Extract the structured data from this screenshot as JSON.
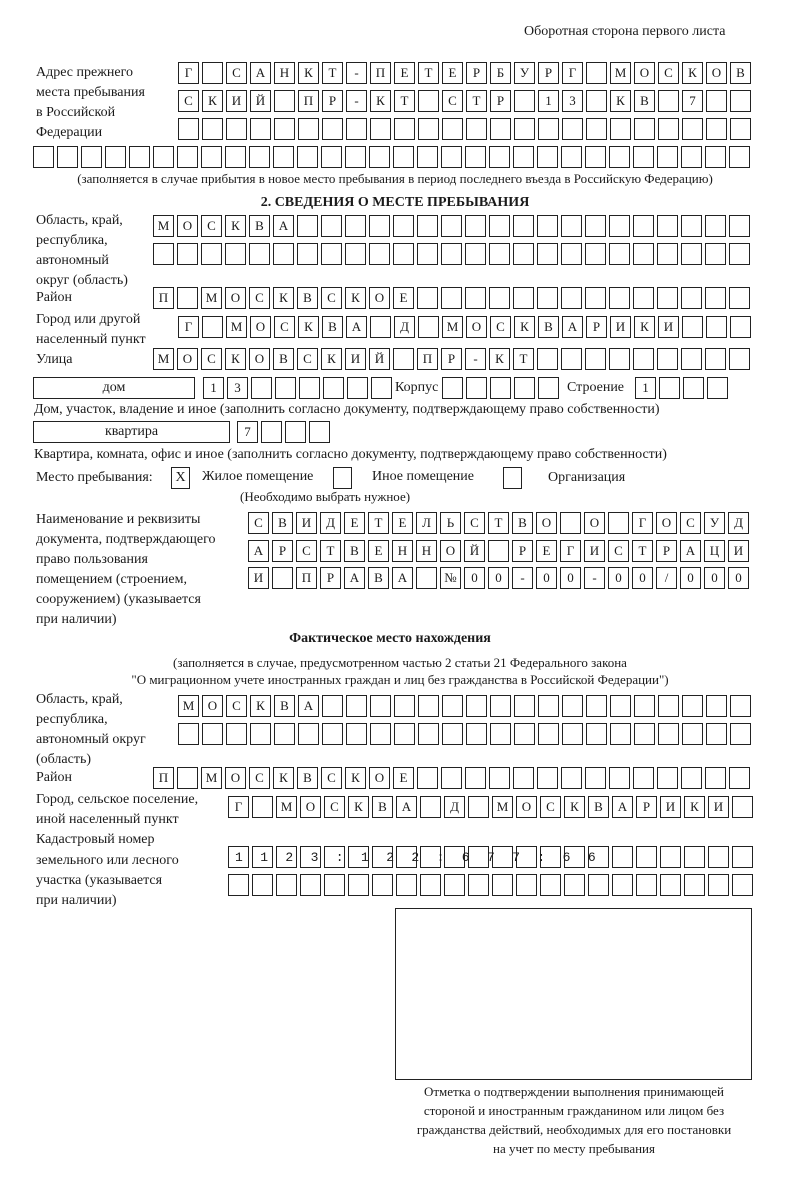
{
  "header": {
    "title": "Оборотная сторона первого листа"
  },
  "previous_address": {
    "label": [
      "Адрес прежнего",
      "места пребывания",
      "в Российской",
      "Федерации"
    ],
    "rows": [
      {
        "value": "Г САНКТ-ПЕТЕРБУРГ МОСКОВ",
        "cells": 24
      },
      {
        "value": "СКИЙ ПР-КТ СТР 13 КВ 7",
        "cells": 24
      },
      {
        "value": "",
        "cells": 24
      },
      {
        "value": "",
        "cells": 30
      }
    ],
    "note": "(заполняется в случае прибытия в новое место пребывания в период последнего въезда в Российскую Федерацию)"
  },
  "section2": {
    "title": "2. СВЕДЕНИЯ О МЕСТЕ ПРЕБЫВАНИЯ",
    "region_label": [
      "Область, край,",
      "республика,",
      "автономный",
      "округ (область)"
    ],
    "region_rows": [
      {
        "value": "МОСКВА",
        "cells": 25
      },
      {
        "value": "",
        "cells": 25
      }
    ],
    "district_label": "Район",
    "district_row": {
      "value": "П МОСКВСКОЕ",
      "cells": 25
    },
    "city_label": [
      "Город или другой",
      "населенный пункт"
    ],
    "city_row": {
      "value": "Г МОСКВА Д МОСКВАРИКИ",
      "cells": 24
    },
    "street_label": "Улица",
    "street_row": {
      "value": "МОСКОВСКИЙ ПР-КТ",
      "cells": 25
    },
    "house_type": "дом",
    "house_row": {
      "value": "13",
      "cells": 8
    },
    "building_label": "Корпус",
    "building_row": {
      "value": "",
      "cells": 5
    },
    "structure_label": "Строение",
    "structure_row": {
      "value": "1",
      "cells": 4
    },
    "house_note": "Дом, участок, владение и иное (заполнить согласно документу, подтверждающему право собственности)",
    "apartment_type": "квартира",
    "apartment_row": {
      "value": "7",
      "cells": 4
    },
    "apartment_note": "Квартира, комната, офис и иное (заполнить согласно документу, подтверждающему право собственности)",
    "stay_place_label": "Место пребывания:",
    "stay_options": [
      {
        "label": "Жилое помещение",
        "mark": "X"
      },
      {
        "label": "Иное помещение",
        "mark": ""
      },
      {
        "label": "Организация",
        "mark": ""
      }
    ],
    "stay_note": "(Необходимо выбрать нужное)",
    "document_label": [
      "Наименование и реквизиты",
      "документа, подтверждающего",
      "право пользования",
      "помещением (строением,",
      "сооружением) (указывается",
      "при наличии)"
    ],
    "document_rows": [
      {
        "value": "СВИДЕТЕЛЬСТВО О ГОСУД",
        "cells": 21
      },
      {
        "value": "АРСТВЕННОЙ РЕГИСТРАЦИ",
        "cells": 21
      },
      {
        "value": "И ПРАВА №00-00-00/000",
        "cells": 21
      }
    ]
  },
  "actual": {
    "title": "Фактическое место нахождения",
    "note": [
      "(заполняется в случае, предусмотренном частью 2 статьи 21 Федерального закона",
      "\"О миграционном учете иностранных граждан и лиц без гражданства в Российской Федерации\")"
    ],
    "region_label": [
      "Область, край,",
      "республика,",
      "автономный округ",
      "(область)"
    ],
    "region_rows": [
      {
        "value": "МОСКВА",
        "cells": 24
      },
      {
        "value": "",
        "cells": 24
      }
    ],
    "district_label": "Район",
    "district_row": {
      "value": "П МОСКВСКОЕ",
      "cells": 25
    },
    "city_label": [
      "Город, сельское поселение,",
      "иной населенный пункт"
    ],
    "city_row": {
      "value": "Г МОСКВА Д МОСКВАРИКИ",
      "cells": 22
    },
    "cadastral_label": [
      "Кадастровый номер",
      "земельного или лесного",
      "участка (указывается",
      "при наличии)"
    ],
    "cadastral_rows": [
      {
        "value": "1123:122:677:66",
        "cells": 22
      },
      {
        "value": "",
        "cells": 22
      }
    ]
  },
  "confirmation": {
    "caption": [
      "Отметка о подтверждении выполнения принимающей",
      "стороной и иностранным гражданином или лицом без",
      "гражданства действий, необходимых для его постановки",
      "на учет по месту пребывания"
    ]
  }
}
